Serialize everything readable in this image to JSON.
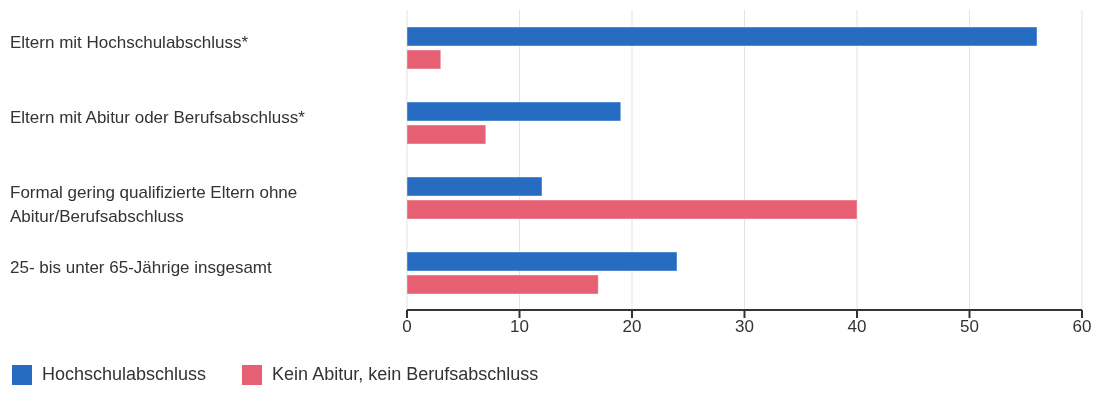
{
  "chart_data": {
    "type": "bar",
    "orientation": "horizontal",
    "categories": [
      "Eltern mit Hochschulabschluss*",
      "Eltern mit Abitur oder Berufsabschluss*",
      "Formal gering qualifizierte Eltern ohne Abitur/Berufsabschluss",
      "25- bis unter 65-Jährige insgesamt"
    ],
    "series": [
      {
        "name": "Hochschulabschluss",
        "color": "#266dc2",
        "values": [
          56,
          19,
          12,
          24
        ]
      },
      {
        "name": "Kein Abitur, kein Berufsabschluss",
        "color": "#e65f72",
        "values": [
          3,
          7,
          40,
          17
        ]
      }
    ],
    "xlim": [
      0,
      60
    ],
    "xticks": [
      0,
      10,
      20,
      30,
      40,
      50,
      60
    ],
    "grid": "x",
    "legend": "bottom"
  }
}
